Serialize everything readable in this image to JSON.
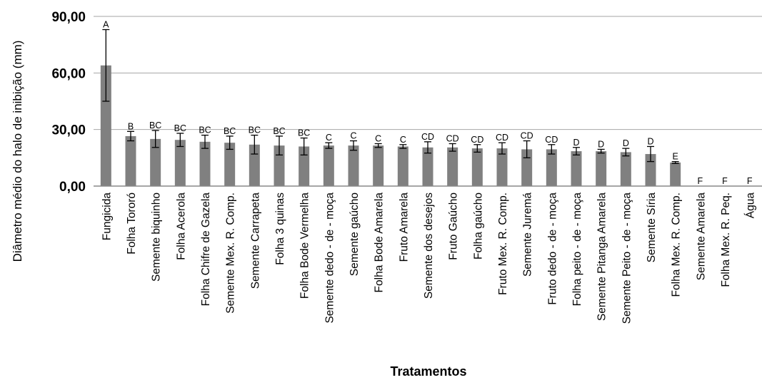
{
  "chart_data": {
    "type": "bar",
    "xlabel": "Tratamentos",
    "ylabel": "Diâmetro médio  do halo de inibição (mm)",
    "ylim": [
      0,
      90
    ],
    "yticks": [
      "0,00",
      "30,00",
      "60,00",
      "90,00"
    ],
    "grid": true,
    "bar_color": "#808080",
    "categories": [
      "Fungicida",
      "Folha Tororó",
      "Semente biquinho",
      "Folha Acerola",
      "Folha Chifre de Gazela",
      "Semente Mex. R. Comp.",
      "Semente Carrapeta",
      "Folha 3 quinas",
      "Folha Bode Vermelha",
      "Semente dedo - de - moça",
      "Semente gaúcho",
      "Folha Bode Amarela",
      "Fruto Amarela",
      "Semente dos desejos",
      "Fruto Gaúcho",
      "Folha gaúcho",
      "Fruto Mex. R. Comp.",
      "Semente Juremá",
      "Fruto dedo - de - moça",
      "Folha peito - de - moça",
      "Semente Pitanga Amarela",
      "Semente Peito - de - moça",
      "Semente Síria",
      "Folha Mex. R. Comp.",
      "Semente Amarela",
      "Folha Mex. R. Peq.",
      "Água"
    ],
    "values": [
      64,
      26.5,
      25,
      24.5,
      23.5,
      23,
      22,
      21.5,
      21,
      21.5,
      21.5,
      21.5,
      21,
      20.5,
      20.5,
      20,
      20,
      19.5,
      19.5,
      18.5,
      18.5,
      18,
      17,
      12.5,
      0,
      0,
      0
    ],
    "errors": [
      19,
      2.5,
      4.5,
      3.5,
      3.5,
      3.5,
      5,
      5,
      4.5,
      1.5,
      2.5,
      1,
      1,
      3,
      2,
      2,
      3,
      4.5,
      2.5,
      2,
      1,
      2,
      4,
      0.5,
      0,
      0,
      0
    ],
    "letters": [
      "A",
      "B",
      "BC",
      "BC",
      "BC",
      "BC",
      "BC",
      "BC",
      "BC",
      "C",
      "C",
      "C",
      "C",
      "CD",
      "CD",
      "CD",
      "CD",
      "CD",
      "CD",
      "D",
      "D",
      "D",
      "D",
      "E",
      "F",
      "F",
      "F"
    ]
  }
}
